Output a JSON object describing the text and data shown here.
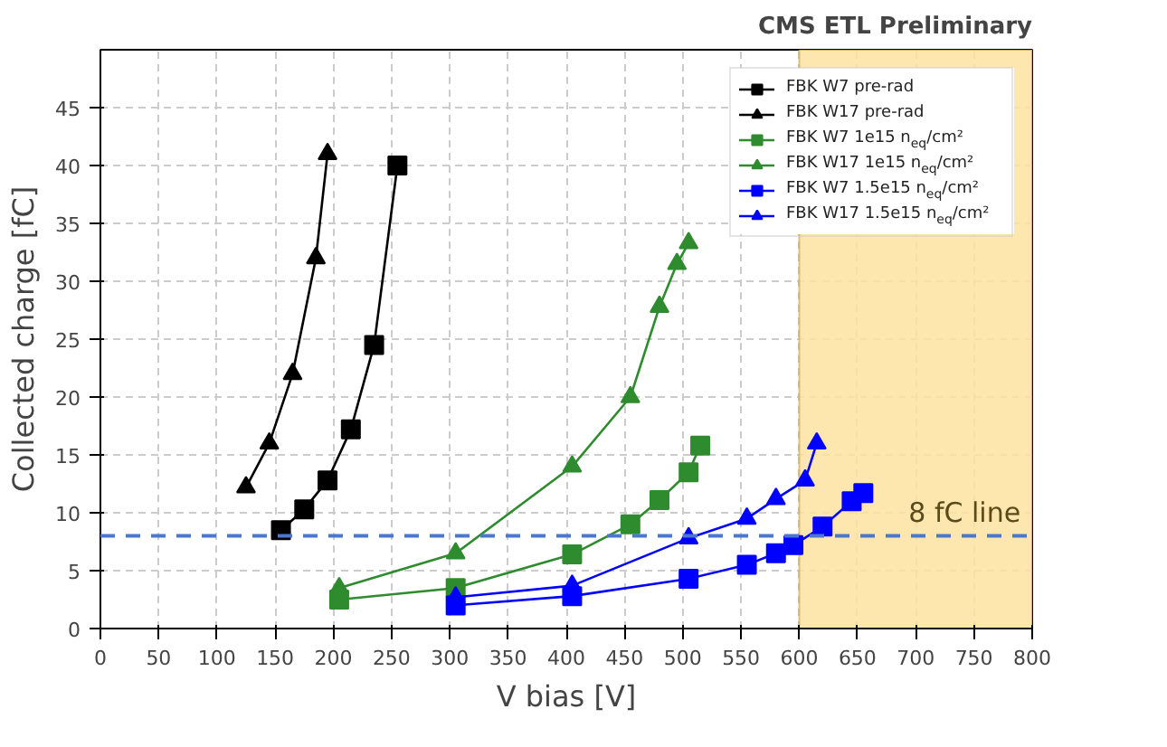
{
  "chart_data": {
    "type": "line",
    "xlabel": "V bias [V]",
    "ylabel": "Collected charge [fC]",
    "annotations": [
      "CMS ETL Preliminary"
    ],
    "xlim": [
      0,
      800
    ],
    "ylim": [
      0,
      50
    ],
    "xticks": [
      0,
      50,
      100,
      150,
      200,
      250,
      300,
      350,
      400,
      450,
      500,
      550,
      600,
      650,
      700,
      750,
      800
    ],
    "yticks": [
      0,
      5,
      10,
      15,
      20,
      25,
      30,
      35,
      40,
      45
    ],
    "grid": true,
    "legend": "top right",
    "line_style": "solid",
    "ref_lines": [
      {
        "axis": "y",
        "value": 8,
        "label": "8 fC line",
        "color": "#4a78d0",
        "line_style": "dashed"
      }
    ],
    "bands": [
      {
        "axis": "x",
        "from": 600,
        "to": 800,
        "color": "#fde3a0"
      }
    ],
    "series": [
      {
        "name": "FBK W7 pre-rad",
        "color": "#000000",
        "marker": "square",
        "x": [
          155,
          175,
          195,
          215,
          235,
          255
        ],
        "values": [
          8.5,
          10.3,
          12.8,
          17.2,
          24.5,
          40
        ]
      },
      {
        "name": "FBK W17 pre-rad",
        "color": "#000000",
        "marker": "triangle",
        "x": [
          125,
          145,
          165,
          185,
          195
        ],
        "values": [
          12.2,
          16,
          22,
          32,
          41
        ]
      },
      {
        "name": "FBK W7 1e15 n$_{eq}$/cm²",
        "color": "#2e8b2e",
        "marker": "square",
        "x": [
          205,
          305,
          405,
          455,
          480,
          505,
          515
        ],
        "values": [
          2.5,
          3.5,
          6.4,
          9,
          11.1,
          13.5,
          15.8
        ]
      },
      {
        "name": "FBK W17 1e15 n$_{eq}$/cm²",
        "color": "#2e8b2e",
        "marker": "triangle",
        "x": [
          205,
          305,
          405,
          455,
          480,
          495,
          505
        ],
        "values": [
          3.5,
          6.5,
          14,
          20,
          27.8,
          31.5,
          33.3
        ]
      },
      {
        "name": "FBK W7 1.5e15 n$_{eq}$/cm²",
        "color": "#0000ff",
        "marker": "square",
        "x": [
          305,
          405,
          505,
          555,
          580,
          595,
          620,
          645,
          655
        ],
        "values": [
          2,
          2.8,
          4.3,
          5.5,
          6.5,
          7.2,
          8.8,
          11,
          11.7
        ]
      },
      {
        "name": "FBK W17 1.5e15 n$_{eq}$/cm²",
        "color": "#0000ff",
        "marker": "triangle",
        "x": [
          305,
          405,
          505,
          555,
          580,
          605,
          615
        ],
        "values": [
          2.7,
          3.7,
          7.8,
          9.5,
          11.2,
          12.8,
          16
        ]
      }
    ]
  }
}
